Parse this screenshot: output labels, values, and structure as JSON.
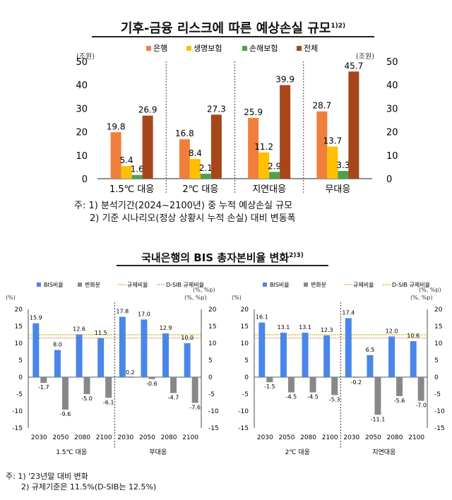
{
  "chart1": {
    "title": "기후-금융 리스크에 따른 예상손실 규모",
    "title_sup": "1)2)",
    "unit_left": "(조원)",
    "unit_right": "(조원)",
    "notes": [
      "주: 1) 분석기간(2024~2100년) 중 누적 예상손실 규모",
      "2) 기준 시나리오(정상 상황시 누적 손실) 대비 변동폭"
    ]
  },
  "chart2": {
    "title": "국내은행의 BIS 총자본비율 변화",
    "title_sup": "2)3)",
    "notes": [
      "주: 1) '23년말 대비 변화",
      "2) 규제기준은 11.5%(D-SIB는 12.5%)"
    ]
  },
  "chart_data": [
    {
      "type": "bar",
      "title": "기후-금융 리스크에 따른 예상손실 규모",
      "ylim": [
        0,
        50
      ],
      "yticks": [
        0,
        10,
        20,
        30,
        40,
        50
      ],
      "ylabel": "(조원)",
      "categories": [
        "1.5℃ 대응",
        "2℃ 대응",
        "지연대응",
        "무대응"
      ],
      "series": [
        {
          "name": "은행",
          "color": "#f07f3c",
          "values": [
            19.8,
            16.8,
            25.9,
            28.7
          ]
        },
        {
          "name": "생명보험",
          "color": "#ffc000",
          "values": [
            5.4,
            8.4,
            11.2,
            13.7
          ]
        },
        {
          "name": "손해보험",
          "color": "#4ea34a",
          "values": [
            1.6,
            2.1,
            2.9,
            3.3
          ]
        },
        {
          "name": "전체",
          "color": "#a7461a",
          "values": [
            26.9,
            27.3,
            39.9,
            45.7
          ]
        }
      ]
    },
    {
      "type": "bar",
      "panel": "left",
      "ylim": [
        -15,
        20
      ],
      "yticks": [
        -15,
        -10,
        -5,
        0,
        5,
        10,
        15,
        20
      ],
      "ylabel_left": "(%)",
      "ylabel_right": "(%, %p)",
      "ylabel_top": "(%, %p)",
      "x": [
        "2030",
        "2050",
        "2080",
        "2100",
        "2030",
        "2050",
        "2080",
        "2100"
      ],
      "groups": [
        "1.5℃ 대응",
        "무대응"
      ],
      "legend": [
        "BIS비율",
        "변화분",
        "규제비율",
        "D-SIB 규제비율"
      ],
      "series": [
        {
          "name": "BIS비율",
          "color": "#4a86e8",
          "values": [
            15.9,
            8.0,
            12.6,
            11.5,
            17.8,
            17.0,
            12.9,
            10.0
          ]
        },
        {
          "name": "변화분",
          "color": "#888888",
          "values": [
            -1.7,
            -9.6,
            -5.0,
            -6.1,
            0.2,
            -0.6,
            -4.7,
            -7.6
          ]
        }
      ],
      "reference_lines": [
        {
          "name": "규제비율",
          "value": 11.5,
          "color": "#e58a2e"
        },
        {
          "name": "D-SIB 규제비율",
          "value": 12.5,
          "color": "#b8a300"
        }
      ]
    },
    {
      "type": "bar",
      "panel": "right",
      "ylim": [
        -15,
        20
      ],
      "yticks": [
        -15,
        -10,
        -5,
        0,
        5,
        10,
        15,
        20
      ],
      "ylabel_left": "(%)",
      "ylabel_right": "(%, %p)",
      "ylabel_top": "(%, %p)",
      "x": [
        "2030",
        "2050",
        "2080",
        "2100",
        "2030",
        "2050",
        "2080",
        "2100"
      ],
      "groups": [
        "2℃ 대응",
        "지연대응"
      ],
      "legend": [
        "BIS비율",
        "변화분",
        "규제비율",
        "D-SIB 규제비율"
      ],
      "series": [
        {
          "name": "BIS비율",
          "color": "#4a86e8",
          "values": [
            16.1,
            13.1,
            13.1,
            12.3,
            17.4,
            6.5,
            12.0,
            10.6
          ]
        },
        {
          "name": "변화분",
          "color": "#888888",
          "values": [
            -1.5,
            -4.5,
            -4.5,
            -5.3,
            -0.2,
            -11.1,
            -5.6,
            -7.0
          ]
        }
      ],
      "reference_lines": [
        {
          "name": "규제비율",
          "value": 11.5,
          "color": "#e58a2e"
        },
        {
          "name": "D-SIB 규제비율",
          "value": 12.5,
          "color": "#b8a300"
        }
      ]
    }
  ]
}
